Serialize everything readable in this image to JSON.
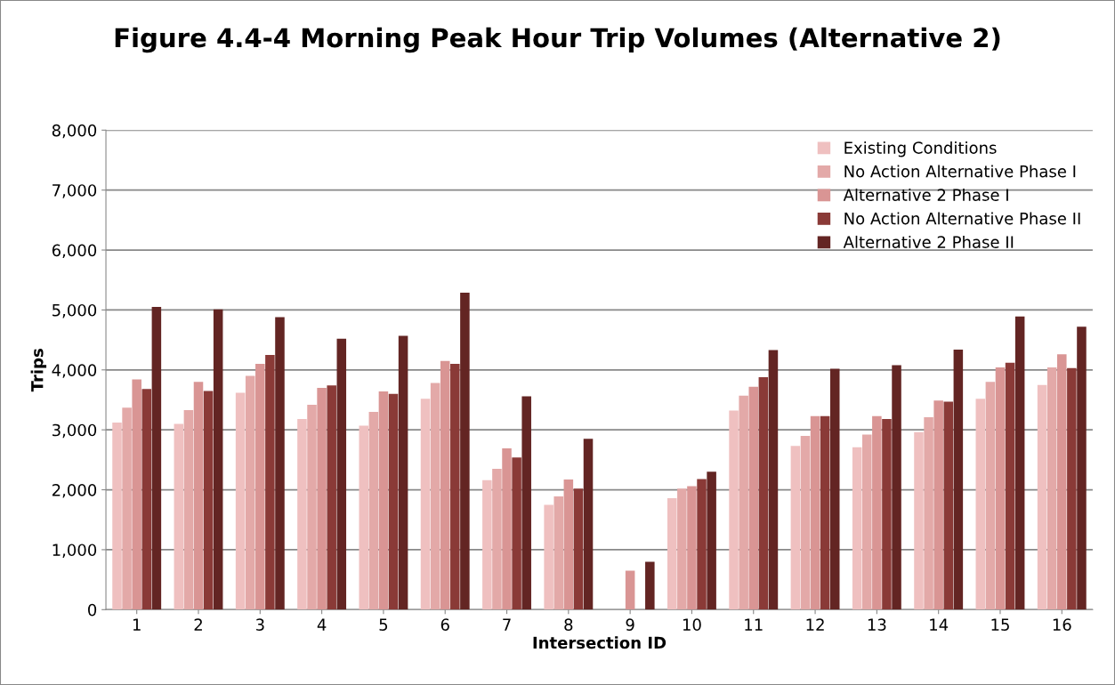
{
  "chart_data": {
    "type": "bar",
    "title": "Figure 4.4-4 Morning Peak Hour Trip Volumes (Alternative 2)",
    "xlabel": "Intersection ID",
    "ylabel": "Trips",
    "categories": [
      "1",
      "2",
      "3",
      "4",
      "5",
      "6",
      "7",
      "8",
      "9",
      "10",
      "11",
      "12",
      "13",
      "14",
      "15",
      "16"
    ],
    "series": [
      {
        "name": "Existing Conditions",
        "color": "#efc0c0",
        "values": [
          3120,
          3100,
          3620,
          3180,
          3070,
          3520,
          2160,
          1750,
          0,
          1860,
          3320,
          2730,
          2710,
          2960,
          3520,
          3750
        ]
      },
      {
        "name": "No Action Alternative Phase I",
        "color": "#e3a9a8",
        "values": [
          3370,
          3330,
          3900,
          3420,
          3300,
          3780,
          2350,
          1890,
          0,
          2020,
          3570,
          2900,
          2920,
          3210,
          3800,
          4040
        ]
      },
      {
        "name": "Alternative 2 Phase I",
        "color": "#d99594",
        "values": [
          3840,
          3800,
          4100,
          3700,
          3640,
          4150,
          2690,
          2170,
          650,
          2060,
          3720,
          3230,
          3230,
          3490,
          4040,
          4260
        ]
      },
      {
        "name": "No Action Alternative Phase II",
        "color": "#8a3a37",
        "values": [
          3680,
          3650,
          4250,
          3740,
          3600,
          4100,
          2540,
          2020,
          0,
          2180,
          3880,
          3230,
          3180,
          3470,
          4120,
          4030
        ]
      },
      {
        "name": "Alternative 2 Phase II",
        "color": "#632523",
        "values": [
          5050,
          5010,
          4880,
          4520,
          4570,
          5290,
          3560,
          2850,
          800,
          2300,
          4330,
          4020,
          4080,
          4340,
          4890,
          4720
        ]
      }
    ],
    "ylim": [
      0,
      8000
    ],
    "yticks": [
      {
        "value": 0,
        "label": "0"
      },
      {
        "value": 1000,
        "label": "1,000"
      },
      {
        "value": 2000,
        "label": "2,000"
      },
      {
        "value": 3000,
        "label": "3,000"
      },
      {
        "value": 4000,
        "label": "4,000"
      },
      {
        "value": 5000,
        "label": "5,000"
      },
      {
        "value": 6000,
        "label": "6,000"
      },
      {
        "value": 7000,
        "label": "7,000"
      },
      {
        "value": 8000,
        "label": "8,000"
      }
    ],
    "grid": "y",
    "legend": "top right"
  }
}
